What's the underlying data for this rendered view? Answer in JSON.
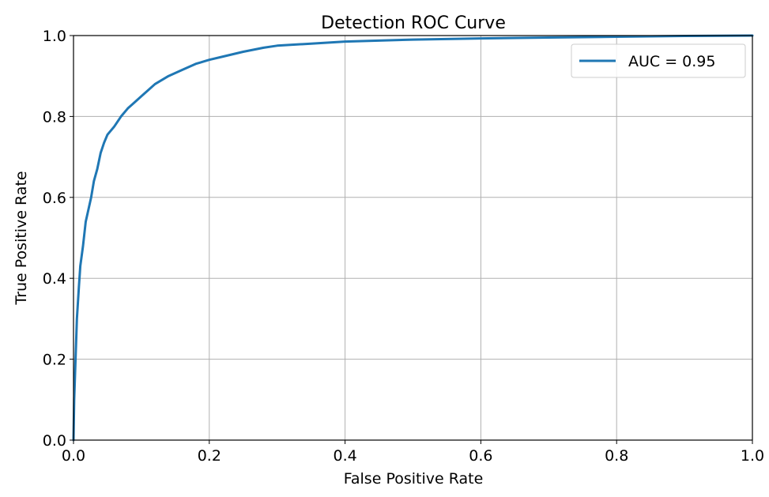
{
  "chart_data": {
    "type": "line",
    "title": "Detection ROC Curve",
    "xlabel": "False Positive Rate",
    "ylabel": "True Positive Rate",
    "xlim": [
      0.0,
      1.0
    ],
    "ylim": [
      0.0,
      1.0
    ],
    "x_ticks": [
      "0.0",
      "0.2",
      "0.4",
      "0.6",
      "0.8",
      "1.0"
    ],
    "y_ticks": [
      "0.0",
      "0.2",
      "0.4",
      "0.6",
      "0.8",
      "1.0"
    ],
    "grid": true,
    "legend_position": "top-right",
    "line_color": "#1f77b4",
    "series": [
      {
        "name": "AUC = 0.95",
        "points": [
          [
            0.0,
            0.0
          ],
          [
            0.001,
            0.1
          ],
          [
            0.003,
            0.2
          ],
          [
            0.005,
            0.3
          ],
          [
            0.008,
            0.38
          ],
          [
            0.01,
            0.43
          ],
          [
            0.014,
            0.48
          ],
          [
            0.018,
            0.54
          ],
          [
            0.022,
            0.57
          ],
          [
            0.026,
            0.6
          ],
          [
            0.03,
            0.64
          ],
          [
            0.035,
            0.67
          ],
          [
            0.04,
            0.71
          ],
          [
            0.045,
            0.735
          ],
          [
            0.05,
            0.755
          ],
          [
            0.06,
            0.775
          ],
          [
            0.07,
            0.8
          ],
          [
            0.08,
            0.82
          ],
          [
            0.09,
            0.835
          ],
          [
            0.1,
            0.85
          ],
          [
            0.11,
            0.865
          ],
          [
            0.12,
            0.88
          ],
          [
            0.14,
            0.9
          ],
          [
            0.16,
            0.915
          ],
          [
            0.18,
            0.93
          ],
          [
            0.2,
            0.94
          ],
          [
            0.22,
            0.948
          ],
          [
            0.25,
            0.96
          ],
          [
            0.28,
            0.97
          ],
          [
            0.3,
            0.975
          ],
          [
            0.35,
            0.98
          ],
          [
            0.4,
            0.985
          ],
          [
            0.5,
            0.99
          ],
          [
            0.6,
            0.993
          ],
          [
            0.7,
            0.995
          ],
          [
            0.8,
            0.997
          ],
          [
            0.9,
            0.999
          ],
          [
            1.0,
            1.0
          ]
        ]
      }
    ]
  }
}
